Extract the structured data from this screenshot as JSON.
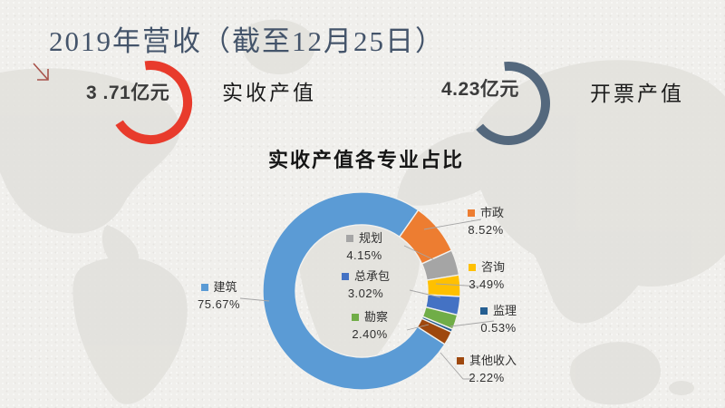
{
  "slide": {
    "title": "2019年营收（截至12月25日）",
    "background_color": "#f0efec",
    "map_color": "#e2e1dd"
  },
  "kpis": [
    {
      "value": "3 .71亿元",
      "label": "实收产值",
      "arc_color": "#e83b2c"
    },
    {
      "value": "4.23亿元",
      "label": "开票产值",
      "arc_color": "#54687d"
    }
  ],
  "chart_data": {
    "type": "pie",
    "subtype": "donut",
    "title": "实收产值各专业占比",
    "categories": [
      "建筑",
      "市政",
      "规划",
      "咨询",
      "总承包",
      "勘察",
      "监理",
      "其他收入"
    ],
    "values": [
      75.67,
      8.52,
      4.15,
      3.49,
      3.02,
      2.4,
      0.53,
      2.22
    ],
    "unit": "%",
    "percent_labels": [
      "75.67%",
      "8.52%",
      "4.15%",
      "3.49%",
      "3.02%",
      "2.40%",
      "0.53%",
      "2.22%"
    ],
    "colors": [
      "#5b9bd5",
      "#ed7d31",
      "#a5a5a5",
      "#ffc000",
      "#4472c4",
      "#70ad47",
      "#255e91",
      "#9e480e"
    ],
    "start_angle_deg": 122.6,
    "legend_position": "callout"
  },
  "decor": {
    "title_color": "#44546a",
    "arrow_color": "#a8534b",
    "leader_line_color": "#a6a6a6"
  }
}
